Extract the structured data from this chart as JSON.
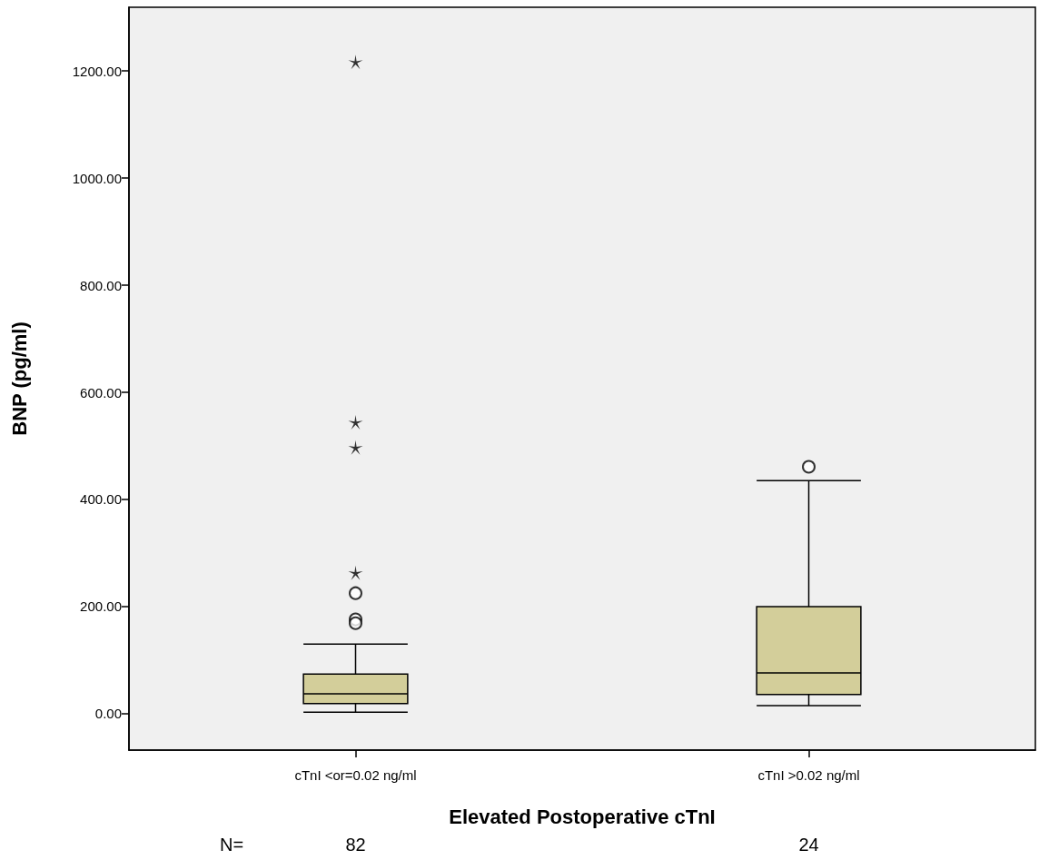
{
  "chart_data": {
    "type": "box",
    "xlabel": "Elevated Postoperative cTnI",
    "ylabel": "BNP (pg/ml)",
    "categories": [
      "cTnI <or=0.02 ng/ml",
      "cTnI >0.02 ng/ml"
    ],
    "ylim": [
      -68,
      1319
    ],
    "yticks": [
      {
        "value": 0,
        "label": "0.00"
      },
      {
        "value": 200,
        "label": "200.00"
      },
      {
        "value": 400,
        "label": "400.00"
      },
      {
        "value": 600,
        "label": "600.00"
      },
      {
        "value": 800,
        "label": "800.00"
      },
      {
        "value": 1000,
        "label": "1000.00"
      },
      {
        "value": 1200,
        "label": "1200.00"
      }
    ],
    "series": [
      {
        "color": "#d3ce9a",
        "boxes": [
          {
            "low": 3,
            "q1": 19,
            "median": 37,
            "q3": 74,
            "high": 130,
            "outliers": [
              225,
              176,
              169
            ]
          },
          {
            "low": 15,
            "q1": 36,
            "median": 76,
            "q3": 200,
            "high": 435,
            "outliers": [
              461
            ]
          }
        ]
      },
      {
        "type": "scatter",
        "marker": "star",
        "color": "#000000",
        "x": [
          "cTnI <or=0.02 ng/ml",
          "cTnI <or=0.02 ng/ml",
          "cTnI <or=0.02 ng/ml",
          "cTnI <or=0.02 ng/ml"
        ],
        "values": [
          263,
          497,
          544,
          1217
        ]
      }
    ],
    "grid": false,
    "annotations": [
      "N=",
      "82",
      "24"
    ]
  }
}
